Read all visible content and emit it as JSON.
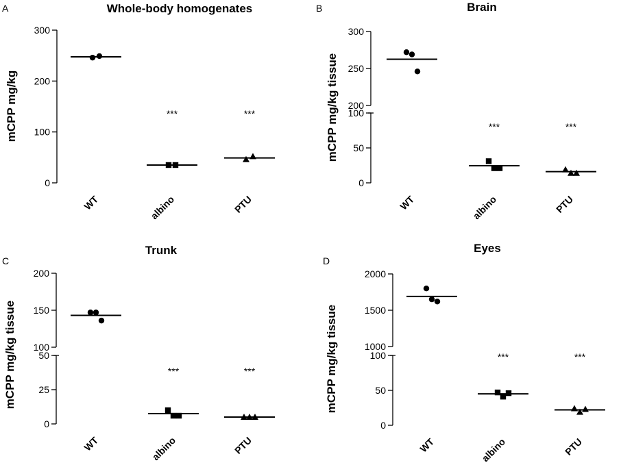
{
  "chart_data": [
    {
      "panel": "A",
      "type": "scatter",
      "title": "Whole-body homogenates",
      "ylabel": "mCPP mg/kg",
      "categories": [
        "WT",
        "albino",
        "PTU"
      ],
      "markers": [
        "circle",
        "square",
        "triangle"
      ],
      "broken_axis": false,
      "segments": [
        {
          "range": [
            0,
            300
          ],
          "ticks": [
            0,
            100,
            200,
            300
          ],
          "tick_labels": [
            "0",
            "100",
            "200",
            "300"
          ]
        }
      ],
      "series": [
        {
          "name": "WT",
          "values": [
            246,
            249
          ],
          "mean": 247.5,
          "significance": ""
        },
        {
          "name": "albino",
          "values": [
            35,
            35
          ],
          "mean": 35,
          "significance": "***"
        },
        {
          "name": "PTU",
          "values": [
            46,
            52
          ],
          "mean": 49,
          "significance": "***"
        }
      ]
    },
    {
      "panel": "B",
      "type": "scatter",
      "title": "Brain",
      "ylabel": "mCPP mg/kg tissue",
      "categories": [
        "WT",
        "albino",
        "PTU"
      ],
      "markers": [
        "circle",
        "square",
        "triangle"
      ],
      "broken_axis": true,
      "segments": [
        {
          "range": [
            0,
            100
          ],
          "ticks": [
            0,
            50,
            100
          ],
          "tick_labels": [
            "0",
            "50",
            "100"
          ]
        },
        {
          "range": [
            200,
            300
          ],
          "ticks": [
            200,
            250,
            300
          ],
          "tick_labels": [
            "200",
            "250",
            "300"
          ]
        }
      ],
      "series": [
        {
          "name": "WT",
          "values": [
            272,
            269,
            246
          ],
          "mean": 262.5,
          "significance": ""
        },
        {
          "name": "albino",
          "values": [
            31,
            21,
            21
          ],
          "mean": 24.5,
          "significance": "***"
        },
        {
          "name": "PTU",
          "values": [
            19,
            14,
            14
          ],
          "mean": 16,
          "significance": "***"
        }
      ]
    },
    {
      "panel": "C",
      "type": "scatter",
      "title": "Trunk",
      "ylabel": "mCPP mg/kg tissue",
      "categories": [
        "WT",
        "albino",
        "PTU"
      ],
      "markers": [
        "circle",
        "square",
        "triangle"
      ],
      "broken_axis": true,
      "segments": [
        {
          "range": [
            0,
            50
          ],
          "ticks": [
            0,
            25,
            50
          ],
          "tick_labels": [
            "0",
            "25",
            "50"
          ]
        },
        {
          "range": [
            100,
            200
          ],
          "ticks": [
            100,
            150,
            200
          ],
          "tick_labels": [
            "100",
            "150",
            "200"
          ]
        }
      ],
      "series": [
        {
          "name": "WT",
          "values": [
            147,
            147,
            136
          ],
          "mean": 143,
          "significance": ""
        },
        {
          "name": "albino",
          "values": [
            10,
            6,
            6
          ],
          "mean": 7.5,
          "significance": "***"
        },
        {
          "name": "PTU",
          "values": [
            5,
            5,
            5
          ],
          "mean": 5,
          "significance": "***"
        }
      ]
    },
    {
      "panel": "D",
      "type": "scatter",
      "title": "Eyes",
      "ylabel": "mCPP mg/kg tissue",
      "categories": [
        "WT",
        "albino",
        "PTU"
      ],
      "markers": [
        "circle",
        "square",
        "triangle"
      ],
      "broken_axis": true,
      "segments": [
        {
          "range": [
            0,
            100
          ],
          "ticks": [
            0,
            50,
            100
          ],
          "tick_labels": [
            "0",
            "50",
            "100"
          ]
        },
        {
          "range": [
            1000,
            2000
          ],
          "ticks": [
            1000,
            1500,
            2000
          ],
          "tick_labels": [
            "1000",
            "1500",
            "2000"
          ]
        }
      ],
      "series": [
        {
          "name": "WT",
          "values": [
            1800,
            1650,
            1620
          ],
          "mean": 1690,
          "significance": ""
        },
        {
          "name": "albino",
          "values": [
            47,
            41,
            46
          ],
          "mean": 45,
          "significance": "***"
        },
        {
          "name": "PTU",
          "values": [
            24,
            19,
            23
          ],
          "mean": 22,
          "significance": "***"
        }
      ]
    }
  ]
}
